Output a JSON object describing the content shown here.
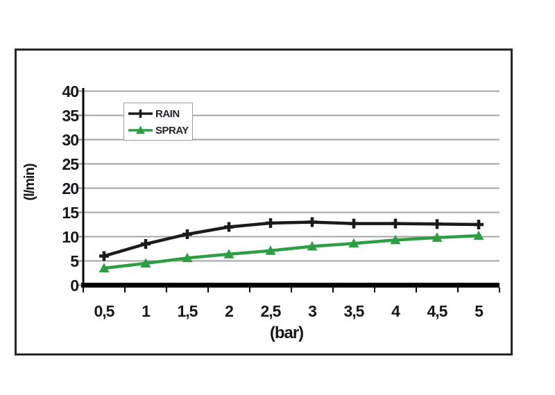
{
  "chart_data": {
    "type": "line",
    "x": [
      0.5,
      1,
      1.5,
      2,
      2.5,
      3,
      3.5,
      4,
      4.5,
      5
    ],
    "categories": [
      "0,5",
      "1",
      "1,5",
      "2",
      "2,5",
      "3",
      "3,5",
      "4",
      "4,5",
      "5"
    ],
    "series": [
      {
        "name": "RAIN",
        "color": "#1a1a1a",
        "marker": "plus",
        "values": [
          6,
          8.5,
          10.5,
          12,
          12.8,
          13,
          12.7,
          12.7,
          12.6,
          12.5
        ]
      },
      {
        "name": "SPRAY",
        "color": "#2e9e42",
        "marker": "triangle-up",
        "values": [
          3.5,
          4.5,
          5.6,
          6.4,
          7.1,
          8,
          8.6,
          9.3,
          9.8,
          10.2
        ]
      }
    ],
    "title": "",
    "xlabel": "(bar)",
    "ylabel": "(l/min)",
    "ylim": [
      0,
      40
    ],
    "y_ticks": [
      0,
      5,
      10,
      15,
      20,
      25,
      30,
      35,
      40
    ],
    "grid": "horizontal",
    "gridline_color": "#a3a3a3",
    "axis_color": "#000000",
    "legend_position": "top-left-inside"
  }
}
